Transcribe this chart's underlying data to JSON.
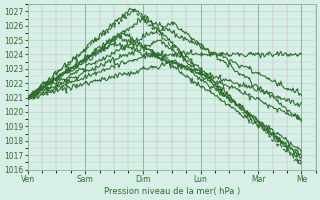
{
  "xlabel": "Pression niveau de la mer( hPa )",
  "ylim": [
    1016,
    1027.5
  ],
  "yticks": [
    1016,
    1017,
    1018,
    1019,
    1020,
    1021,
    1022,
    1023,
    1024,
    1025,
    1026,
    1027
  ],
  "day_labels": [
    "Ven",
    "Sam",
    "Dim",
    "Lun",
    "Mar",
    "Me"
  ],
  "day_positions": [
    0,
    24,
    48,
    72,
    96,
    114
  ],
  "bg_color": "#d8efe8",
  "grid_color": "#b0d8c8",
  "line_color": "#2d6e2d",
  "total_hours": 120,
  "series_params": [
    [
      0,
      1021.0,
      44,
      1027.3,
      114,
      1016.5,
      false
    ],
    [
      0,
      1021.0,
      44,
      1027.1,
      114,
      1016.3,
      true
    ],
    [
      0,
      1021.0,
      40,
      1025.5,
      114,
      1017.0,
      false
    ],
    [
      0,
      1021.0,
      38,
      1025.2,
      114,
      1019.5,
      false
    ],
    [
      0,
      1021.0,
      36,
      1024.8,
      114,
      1020.5,
      false
    ],
    [
      0,
      1021.0,
      48,
      1026.5,
      114,
      1021.2,
      false
    ],
    [
      0,
      1021.0,
      50,
      1024.0,
      114,
      1024.0,
      false
    ],
    [
      0,
      1021.0,
      60,
      1026.2,
      114,
      1019.5,
      false
    ],
    [
      0,
      1021.0,
      62,
      1023.5,
      114,
      1017.3,
      false
    ],
    [
      0,
      1021.0,
      55,
      1025.0,
      114,
      1016.8,
      false
    ]
  ]
}
